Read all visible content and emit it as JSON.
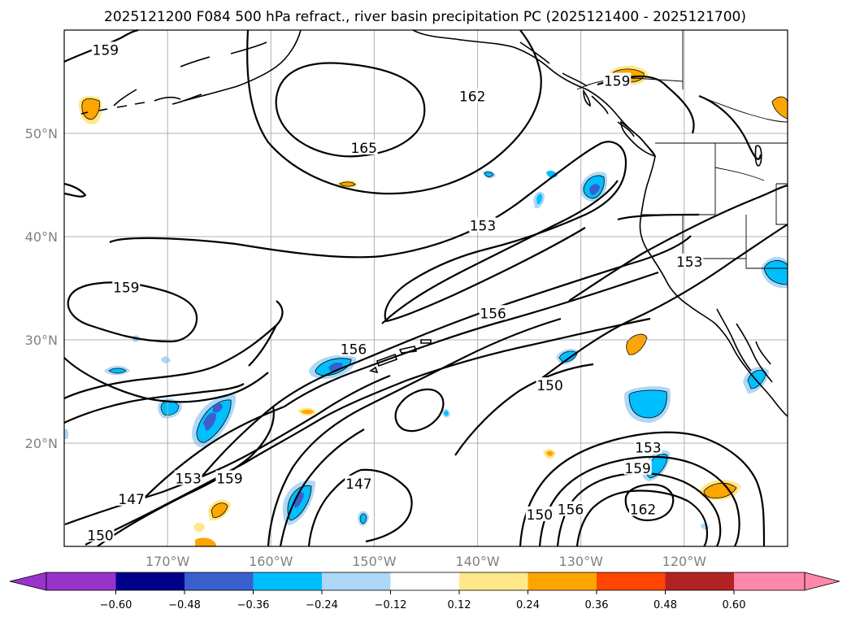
{
  "title": "2025121200 F084 500 hPa refract., river basin precipitation PC (2025121400 - 2025121700)",
  "lat_labels": [
    {
      "lat": 50,
      "text": "50°N"
    },
    {
      "lat": 40,
      "text": "40°N"
    },
    {
      "lat": 30,
      "text": "30°N"
    },
    {
      "lat": 20,
      "text": "20°N"
    }
  ],
  "lon_labels": [
    {
      "lon": -170,
      "text": "170°W"
    },
    {
      "lon": -160,
      "text": "160°W"
    },
    {
      "lon": -150,
      "text": "150°W"
    },
    {
      "lon": -140,
      "text": "140°W"
    },
    {
      "lon": -130,
      "text": "130°W"
    },
    {
      "lon": -120,
      "text": "120°W"
    }
  ],
  "map_extent": {
    "lon_min": -180,
    "lon_max": -110,
    "lat_min": 10,
    "lat_max": 60
  },
  "colorbar": {
    "ticks": [
      "−0.60",
      "−0.48",
      "−0.36",
      "−0.24",
      "−0.12",
      "0.12",
      "0.24",
      "0.36",
      "0.48",
      "0.60"
    ],
    "colors": [
      "#9933cc",
      "#00008b",
      "#3a5fcd",
      "#00bfff",
      "#add8f7",
      "#ffffff",
      "#ffe88a",
      "#ffa500",
      "#ff4500",
      "#b22222",
      "#ff88aa"
    ]
  },
  "contour_labels": [
    {
      "text": "159",
      "lon": -176,
      "lat": 58
    },
    {
      "text": "162",
      "lon": -140.5,
      "lat": 53.5
    },
    {
      "text": "165",
      "lon": -151,
      "lat": 48.5
    },
    {
      "text": "159",
      "lon": -126.5,
      "lat": 55
    },
    {
      "text": "153",
      "lon": -139.5,
      "lat": 41
    },
    {
      "text": "153",
      "lon": -119.5,
      "lat": 37.5
    },
    {
      "text": "159",
      "lon": -174,
      "lat": 35
    },
    {
      "text": "156",
      "lon": -138.5,
      "lat": 32.5
    },
    {
      "text": "156",
      "lon": -152,
      "lat": 29
    },
    {
      "text": "150",
      "lon": -133,
      "lat": 25.5
    },
    {
      "text": "153",
      "lon": -123.5,
      "lat": 19.5
    },
    {
      "text": "159",
      "lon": -124.5,
      "lat": 17.5
    },
    {
      "text": "162",
      "lon": -124,
      "lat": 13.5
    },
    {
      "text": "153",
      "lon": -168,
      "lat": 16.5
    },
    {
      "text": "159",
      "lon": -164,
      "lat": 16.5
    },
    {
      "text": "147",
      "lon": -151.5,
      "lat": 16
    },
    {
      "text": "147",
      "lon": -173.5,
      "lat": 14.5
    },
    {
      "text": "150",
      "lon": -176.5,
      "lat": 11
    },
    {
      "text": "150",
      "lon": -134,
      "lat": 13
    },
    {
      "text": "156",
      "lon": -131,
      "lat": 13.5
    }
  ]
}
